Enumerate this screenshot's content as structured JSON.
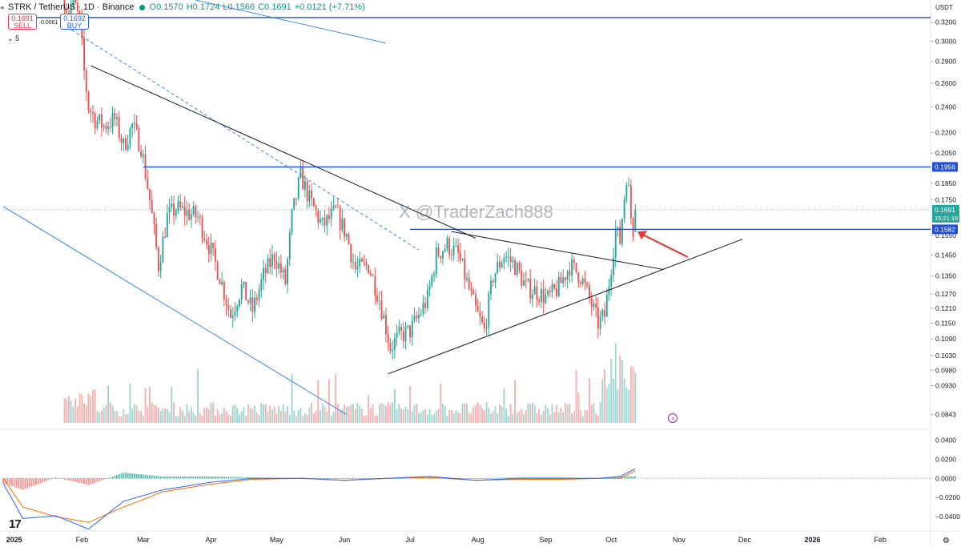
{
  "header": {
    "symbol": "STRK / TetherUS · 1D · Binance",
    "open": "O0.1570",
    "high": "H0.1724",
    "low": "L0.1566",
    "close": "C0.1691",
    "change": "+0.0121 (+7.71%)",
    "sell_price": "0.1691",
    "sell_label": "SELL",
    "buy_price": "0.1692",
    "buy_label": "BUY",
    "spread": "0.0001",
    "indicator_count": "5"
  },
  "watermark": "X @TraderZach888",
  "colors": {
    "up": "#26a69a",
    "down": "#ef5350",
    "level": "#1e4fd6",
    "trend": "#131722",
    "channel": "#2a7be4",
    "macd": "#2962ff",
    "signal": "#ff6d00",
    "arrow": "#e53935"
  },
  "chart_data": [
    {
      "type": "candlestick",
      "title": "STRK / TetherUS · 1D · Binance",
      "currency": "USDT",
      "scale": "log",
      "x_range": [
        "2024-12-27",
        "2026-02-24"
      ],
      "y_range": [
        0.0815,
        0.345
      ],
      "y_ticks": [
        "0.3200",
        "0.3000",
        "0.2800",
        "0.2600",
        "0.2400",
        "0.2200",
        "0.2050",
        "0.1850",
        "0.1750",
        "0.1550",
        "0.1450",
        "0.1350",
        "0.1270",
        "0.1210",
        "0.1150",
        "0.1090",
        "0.1030",
        "0.0980",
        "0.0930",
        "0.0843"
      ],
      "x_ticks": [
        {
          "label": "2025",
          "date": "2025-01-01"
        },
        {
          "label": "Feb",
          "date": "2025-02-01"
        },
        {
          "label": "Mar",
          "date": "2025-03-01"
        },
        {
          "label": "Apr",
          "date": "2025-04-01"
        },
        {
          "label": "May",
          "date": "2025-05-01"
        },
        {
          "label": "Jun",
          "date": "2025-06-01"
        },
        {
          "label": "Jul",
          "date": "2025-07-01"
        },
        {
          "label": "Aug",
          "date": "2025-08-01"
        },
        {
          "label": "Sep",
          "date": "2025-09-01"
        },
        {
          "label": "Oct",
          "date": "2025-10-01"
        },
        {
          "label": "Nov",
          "date": "2025-11-01"
        },
        {
          "label": "Dec",
          "date": "2025-12-01"
        },
        {
          "label": "2026",
          "date": "2026-01-01"
        },
        {
          "label": "Feb",
          "date": "2026-02-01"
        }
      ],
      "close_path": [
        [
          "2025-01-24",
          0.345
        ],
        [
          "2025-01-26",
          0.33
        ],
        [
          "2025-01-28",
          0.345
        ],
        [
          "2025-01-31",
          0.32
        ],
        [
          "2025-02-02",
          0.27
        ],
        [
          "2025-02-04",
          0.24
        ],
        [
          "2025-02-07",
          0.23
        ],
        [
          "2025-02-11",
          0.225
        ],
        [
          "2025-02-16",
          0.23
        ],
        [
          "2025-02-20",
          0.21
        ],
        [
          "2025-02-24",
          0.225
        ],
        [
          "2025-02-28",
          0.21
        ],
        [
          "2025-03-04",
          0.175
        ],
        [
          "2025-03-08",
          0.14
        ],
        [
          "2025-03-12",
          0.165
        ],
        [
          "2025-03-16",
          0.17
        ],
        [
          "2025-03-20",
          0.168
        ],
        [
          "2025-03-26",
          0.165
        ],
        [
          "2025-03-31",
          0.15
        ],
        [
          "2025-04-05",
          0.135
        ],
        [
          "2025-04-10",
          0.118
        ],
        [
          "2025-04-15",
          0.13
        ],
        [
          "2025-04-20",
          0.12
        ],
        [
          "2025-04-25",
          0.135
        ],
        [
          "2025-04-30",
          0.145
        ],
        [
          "2025-05-05",
          0.132
        ],
        [
          "2025-05-08",
          0.165
        ],
        [
          "2025-05-12",
          0.19
        ],
        [
          "2025-05-16",
          0.175
        ],
        [
          "2025-05-22",
          0.16
        ],
        [
          "2025-05-28",
          0.168
        ],
        [
          "2025-06-02",
          0.155
        ],
        [
          "2025-06-06",
          0.138
        ],
        [
          "2025-06-12",
          0.14
        ],
        [
          "2025-06-17",
          0.125
        ],
        [
          "2025-06-22",
          0.106
        ],
        [
          "2025-06-26",
          0.11
        ],
        [
          "2025-07-01",
          0.112
        ],
        [
          "2025-07-05",
          0.118
        ],
        [
          "2025-07-09",
          0.125
        ],
        [
          "2025-07-13",
          0.145
        ],
        [
          "2025-07-18",
          0.15
        ],
        [
          "2025-07-23",
          0.145
        ],
        [
          "2025-07-27",
          0.132
        ],
        [
          "2025-07-31",
          0.12
        ],
        [
          "2025-08-04",
          0.112
        ],
        [
          "2025-08-08",
          0.135
        ],
        [
          "2025-08-13",
          0.145
        ],
        [
          "2025-08-18",
          0.14
        ],
        [
          "2025-08-23",
          0.13
        ],
        [
          "2025-08-28",
          0.128
        ],
        [
          "2025-09-02",
          0.125
        ],
        [
          "2025-09-07",
          0.13
        ],
        [
          "2025-09-12",
          0.14
        ],
        [
          "2025-09-17",
          0.135
        ],
        [
          "2025-09-21",
          0.125
        ],
        [
          "2025-09-25",
          0.115
        ],
        [
          "2025-09-28",
          0.118
        ],
        [
          "2025-10-01",
          0.14
        ],
        [
          "2025-10-03",
          0.158
        ],
        [
          "2025-10-05",
          0.152
        ],
        [
          "2025-10-06",
          0.165
        ],
        [
          "2025-10-08",
          0.19
        ],
        [
          "2025-10-09",
          0.18
        ],
        [
          "2025-10-10",
          0.165
        ],
        [
          "2025-10-11",
          0.158
        ],
        [
          "2025-10-12",
          0.1691
        ]
      ],
      "last_price": 0.1691,
      "countdown": "15:21:19",
      "horizontal_levels": [
        {
          "from": "2025-01-01",
          "value": 0.325,
          "extended": true
        },
        {
          "from": "2025-03-01",
          "value": 0.1956,
          "label": "0.1956"
        },
        {
          "from": "2025-07-01",
          "value": 0.1582,
          "label": "0.1582"
        }
      ],
      "trendlines": [
        {
          "start": [
            "2025-02-05",
            0.276
          ],
          "end": [
            "2025-07-31",
            0.1535
          ]
        },
        {
          "start": [
            "2025-07-20",
            0.157
          ],
          "end": [
            "2025-10-25",
            0.138
          ]
        },
        {
          "start": [
            "2025-06-21",
            0.0968
          ],
          "end": [
            "2025-11-30",
            0.153
          ]
        },
        {
          "start": [
            "2024-12-27",
            0.171
          ],
          "end": [
            "2025-06-02",
            0.0843
          ]
        },
        {
          "start": [
            "2025-03-25",
            0.345
          ],
          "end": [
            "2025-06-20",
            0.298
          ]
        },
        {
          "start": [
            "2025-01-23",
            0.318
          ],
          "end": [
            "2025-07-05",
            0.1475
          ],
          "dashed": true
        }
      ],
      "volume_note": "volume histogram, colored by candle direction"
    },
    {
      "type": "line",
      "title": "",
      "series": [
        {
          "key": "macd",
          "values": [
            -0.005,
            -0.042,
            -0.039,
            -0.053,
            -0.024,
            -0.012,
            -0.004,
            0.0,
            0.0,
            -0.002,
            0.0,
            0.002,
            -0.002,
            0.0,
            0.0,
            0.0,
            0.002,
            0.01
          ]
        },
        {
          "key": "signal",
          "values": [
            0.0,
            -0.03,
            -0.04,
            -0.046,
            -0.03,
            -0.014,
            -0.006,
            -0.001,
            0.0,
            -0.002,
            0.0,
            0.001,
            -0.002,
            -0.001,
            -0.001,
            0.0,
            0.0,
            0.008
          ]
        }
      ],
      "x_dates": [
        "2024-12-27",
        "2025-01-05",
        "2025-01-20",
        "2025-02-04",
        "2025-02-20",
        "2025-03-10",
        "2025-04-01",
        "2025-04-20",
        "2025-05-13",
        "2025-06-01",
        "2025-06-20",
        "2025-07-10",
        "2025-07-31",
        "2025-08-20",
        "2025-09-10",
        "2025-09-25",
        "2025-10-05",
        "2025-10-12"
      ],
      "y_range": [
        -0.055,
        0.048
      ],
      "y_ticks": [
        "0.0400",
        "0.0200",
        "0.0000",
        "−0.0200",
        "−0.0400"
      ],
      "zero_line": true
    }
  ]
}
